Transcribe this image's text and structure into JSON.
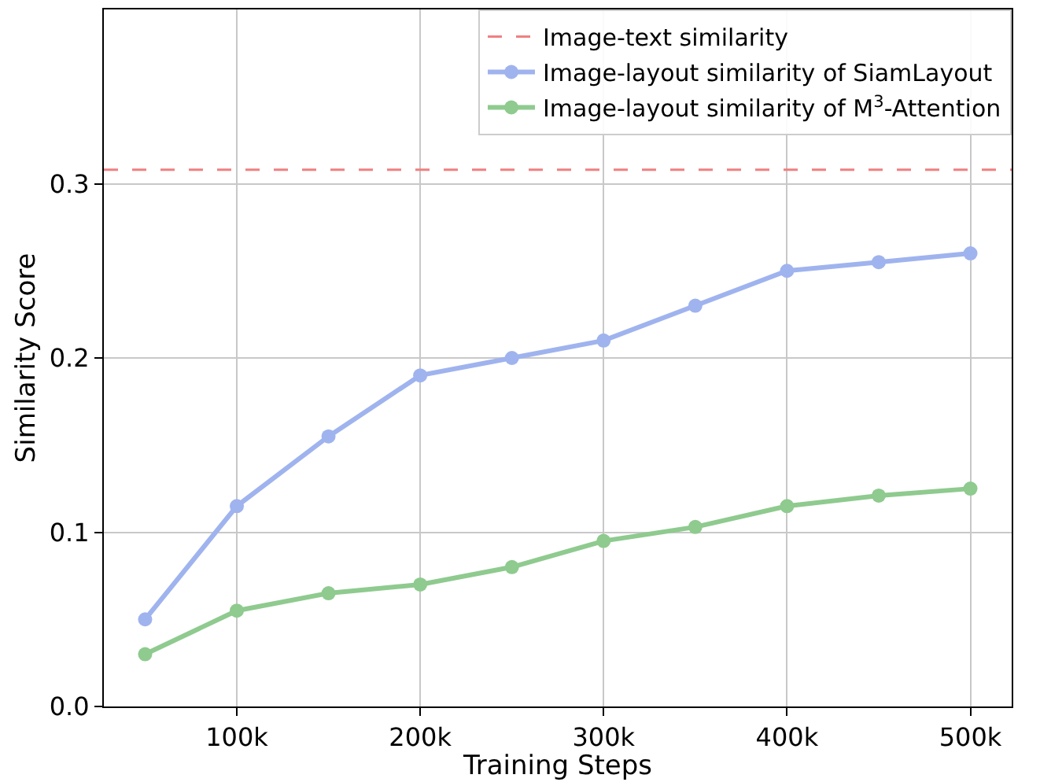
{
  "chart_data": {
    "type": "line",
    "xlabel": "Training Steps",
    "ylabel": "Similarity Score",
    "x": [
      50000,
      100000,
      150000,
      200000,
      250000,
      300000,
      350000,
      400000,
      450000,
      500000
    ],
    "series": [
      {
        "name": "Image-layout similarity of SiamLayout",
        "color": "#9fb3ee",
        "values": [
          0.05,
          0.115,
          0.155,
          0.19,
          0.2,
          0.21,
          0.23,
          0.25,
          0.255,
          0.26
        ]
      },
      {
        "name": "Image-layout similarity of M$^{3}$-Attention",
        "color": "#8fca8f",
        "values": [
          0.03,
          0.055,
          0.065,
          0.07,
          0.08,
          0.095,
          0.103,
          0.115,
          0.121,
          0.125
        ]
      }
    ],
    "ref_lines": [
      {
        "axis": "y",
        "value": 0.308,
        "label": "Image-text similarity",
        "color": "#f08080",
        "line_style": "dashed"
      }
    ],
    "xlim": [
      27500,
      522500
    ],
    "ylim": [
      0,
      0.4
    ],
    "xticks": [
      {
        "value": 100000,
        "label": "100k"
      },
      {
        "value": 200000,
        "label": "200k"
      },
      {
        "value": 300000,
        "label": "300k"
      },
      {
        "value": 400000,
        "label": "400k"
      },
      {
        "value": 500000,
        "label": "500k"
      }
    ],
    "yticks": [
      {
        "value": 0,
        "label": "0.0"
      },
      0.1,
      0.2,
      0.3
    ],
    "grid": true,
    "legend": "top right",
    "marker": "circle",
    "line_style": "solid"
  }
}
